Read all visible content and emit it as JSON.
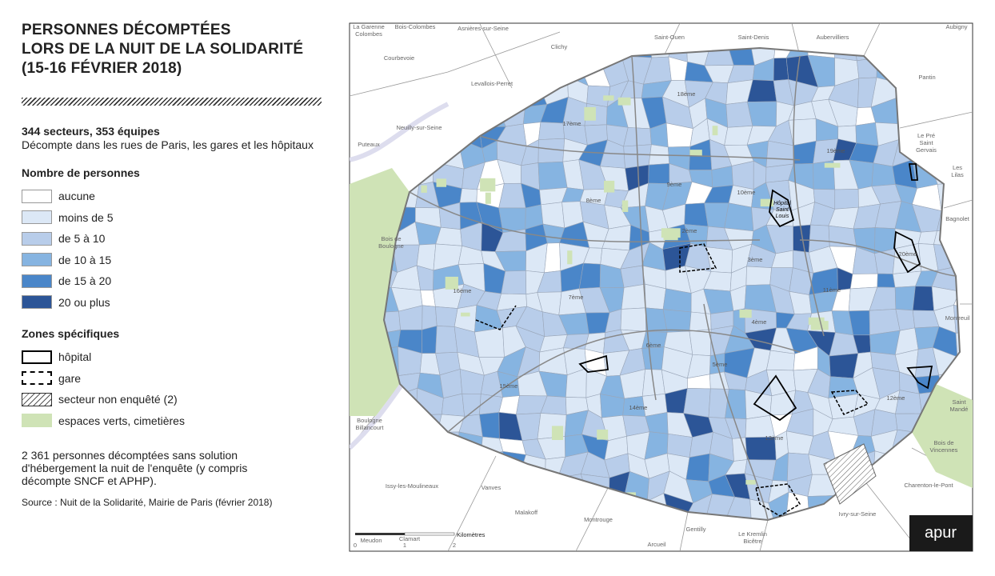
{
  "title": [
    "PERSONNES DÉCOMPTÉES",
    "LORS DE LA NUIT DE LA SOLIDARITÉ",
    "(15-16 FÉVRIER 2018)"
  ],
  "summary": {
    "heading": "344 secteurs, 353 équipes",
    "text": "Décompte dans les rues de Paris, les gares et les hôpitaux"
  },
  "legend_count": {
    "title": "Nombre de personnes",
    "items": [
      {
        "label": "aucune",
        "color": "#ffffff"
      },
      {
        "label": "moins de 5",
        "color": "#dce8f6"
      },
      {
        "label": "de 5 à 10",
        "color": "#b8cdea"
      },
      {
        "label": "de 10 à 15",
        "color": "#86b4e1"
      },
      {
        "label": "de 15 à 20",
        "color": "#4a86c9"
      },
      {
        "label": "20 ou plus",
        "color": "#2c5597"
      }
    ]
  },
  "legend_zones": {
    "title": "Zones spécifiques",
    "items": [
      "hôpital",
      "gare",
      "secteur non enquêté (2)",
      "espaces verts, cimetières"
    ],
    "green_color": "#cfe3b6"
  },
  "note": "2 361 personnes décomptées sans solution d'hébergement la nuit de l'enquête (y compris décompte SNCF et APHP).",
  "source": "Source : Nuit de la Solidarité, Mairie de Paris (février 2018)",
  "map": {
    "places": [
      {
        "lines": [
          "La Garenne",
          "Colombes"
        ]
      },
      {
        "lines": [
          "Bois-Colombes"
        ]
      },
      {
        "lines": [
          "Asnières-sur-Seine"
        ]
      },
      {
        "lines": [
          "Saint-Ouen"
        ]
      },
      {
        "lines": [
          "Saint-Denis"
        ]
      },
      {
        "lines": [
          "Aubervilliers"
        ]
      },
      {
        "lines": [
          "Aubigny"
        ]
      },
      {
        "lines": [
          "Courbevoie"
        ]
      },
      {
        "lines": [
          "Clichy"
        ]
      },
      {
        "lines": [
          "Levallois-Perret"
        ]
      },
      {
        "lines": [
          "Pantin"
        ]
      },
      {
        "lines": [
          "Neuilly-sur-Seine"
        ]
      },
      {
        "lines": [
          "Puteaux"
        ]
      },
      {
        "lines": [
          "Le Pré",
          "Saint",
          "Gervais"
        ]
      },
      {
        "lines": [
          "Les",
          "Lilas"
        ]
      },
      {
        "lines": [
          "Bagnolet"
        ]
      },
      {
        "lines": [
          "Bois de",
          "Boulogne"
        ]
      },
      {
        "lines": [
          "Montreuil"
        ]
      },
      {
        "lines": [
          "Saint",
          "Mandé"
        ]
      },
      {
        "lines": [
          "Bois de",
          "Vincennes"
        ]
      },
      {
        "lines": [
          "Boulogne",
          "Billancourt"
        ]
      },
      {
        "lines": [
          "Issy-les-Moulineaux"
        ]
      },
      {
        "lines": [
          "Vanves"
        ]
      },
      {
        "lines": [
          "Malakoff"
        ]
      },
      {
        "lines": [
          "Montrouge"
        ]
      },
      {
        "lines": [
          "Gentilly"
        ]
      },
      {
        "lines": [
          "Le Kremlin",
          "Bicêtre"
        ]
      },
      {
        "lines": [
          "Arcueil"
        ]
      },
      {
        "lines": [
          "Ivry-sur-Seine"
        ]
      },
      {
        "lines": [
          "Charenton-le-Pont"
        ]
      },
      {
        "lines": [
          "Meudon"
        ]
      },
      {
        "lines": [
          "Clamart"
        ]
      }
    ],
    "districts": [
      "18ème",
      "17ème",
      "19ème",
      "8ème",
      "9ème",
      "10ème",
      "2ème",
      "3ème",
      "20ème",
      "16ème",
      "7ème",
      "11ème",
      "4ème",
      "6ème",
      "5ème",
      "15ème",
      "14ème",
      "13ème",
      "12ème"
    ],
    "hospital": [
      "Hôpital",
      "Saint",
      "Louis"
    ],
    "scale": {
      "unit": "Kilomètres",
      "ticks": [
        "0",
        "1",
        "2"
      ]
    },
    "logo": "apur"
  }
}
